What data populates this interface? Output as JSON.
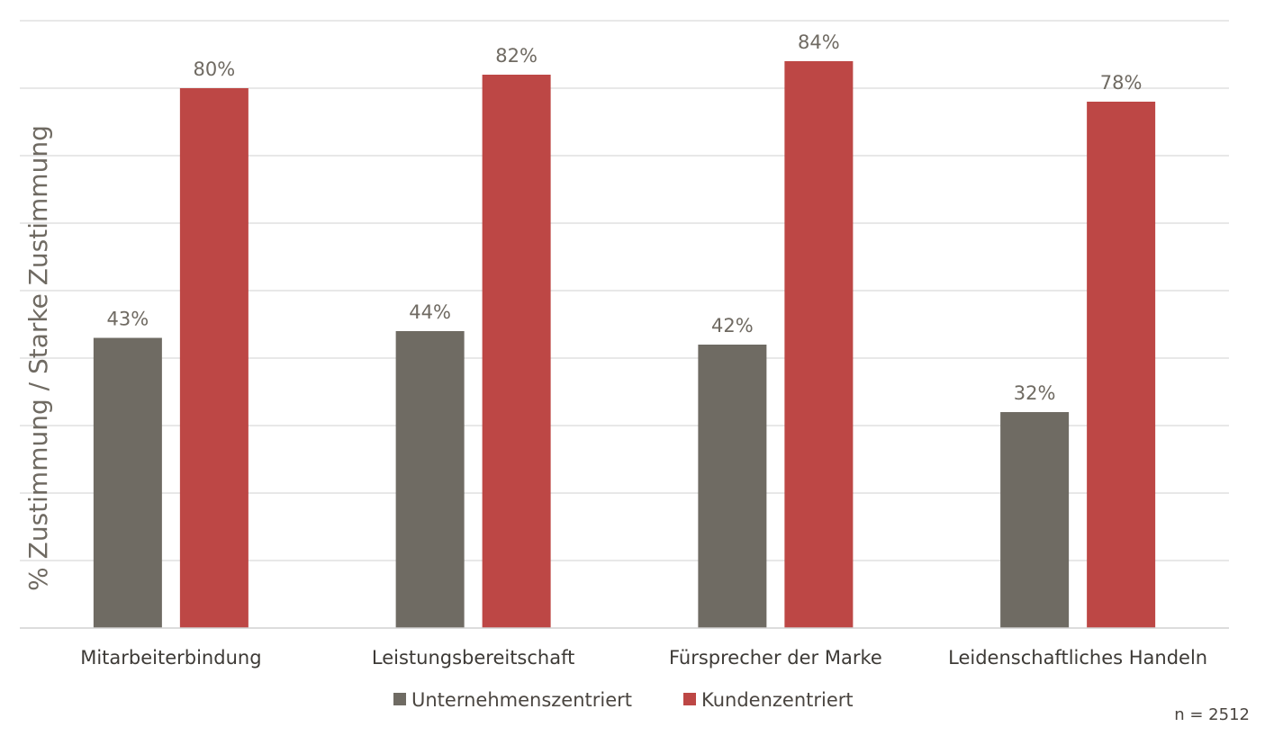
{
  "chart_data": {
    "type": "bar",
    "categories": [
      "Mitarbeiterbindung",
      "Leistungsbereitschaft",
      "Fürsprecher der Marke",
      "Leidenschaftliches Handeln"
    ],
    "series": [
      {
        "name": "Unternehmenszentriert",
        "values": [
          43,
          44,
          42,
          32
        ],
        "labels": [
          "43%",
          "44%",
          "42%",
          "32%"
        ],
        "color": "#6f6b63"
      },
      {
        "name": "Kundenzentriert",
        "values": [
          80,
          82,
          84,
          78
        ],
        "labels": [
          "80%",
          "82%",
          "84%",
          "78%"
        ],
        "color": "#bd4745"
      }
    ],
    "ylabel": "% Zustimmung / Starke Zustimmung",
    "ylim": [
      0,
      90
    ],
    "grid": true,
    "legend_position": "bottom",
    "note": "n = 2512"
  }
}
